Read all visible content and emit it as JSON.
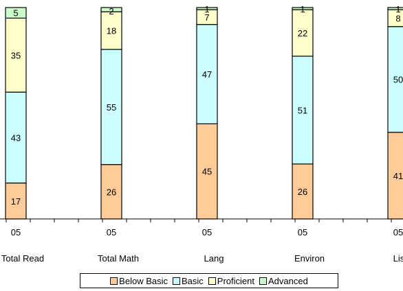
{
  "chart_data": {
    "type": "bar",
    "stacked": true,
    "percent_scale": true,
    "categories": [
      "Total Read",
      "Total Math",
      "Lang",
      "Environ",
      "Listen"
    ],
    "year_labels": [
      "05",
      "05",
      "05",
      "05",
      "05"
    ],
    "series": [
      {
        "name": "Below Basic",
        "color": "#ffcc99",
        "values": [
          17,
          26,
          45,
          26,
          41
        ]
      },
      {
        "name": "Basic",
        "color": "#ccffff",
        "values": [
          43,
          55,
          47,
          51,
          50
        ]
      },
      {
        "name": "Proficient",
        "color": "#ffffcc",
        "values": [
          35,
          18,
          7,
          22,
          8
        ]
      },
      {
        "name": "Advanced",
        "color": "#ccffcc",
        "values": [
          5,
          2,
          1,
          1,
          1
        ]
      }
    ],
    "ylim": [
      0,
      100
    ],
    "legend_position": "bottom"
  }
}
